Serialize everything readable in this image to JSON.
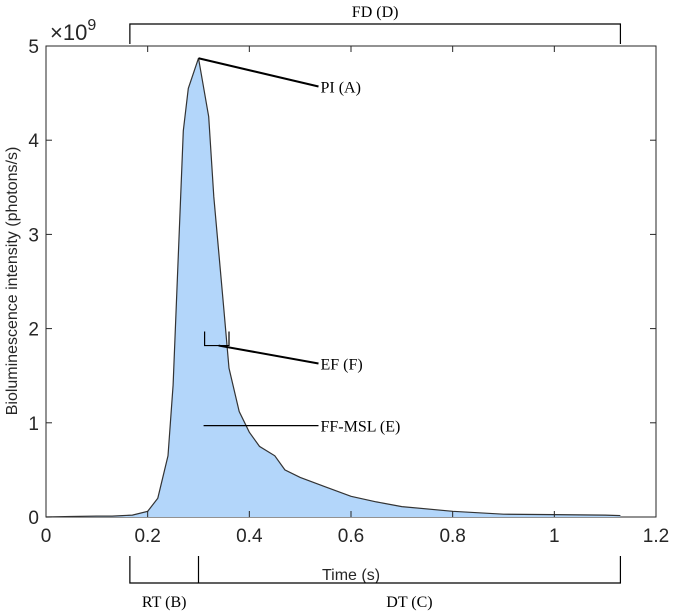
{
  "chart_data": {
    "type": "area",
    "xlabel": "Time (s)",
    "ylabel": "Bioluminescence intensity (photons/s)",
    "xlim": [
      0,
      1.2
    ],
    "ylim": [
      0,
      5
    ],
    "y_multiplier": {
      "base": "×10",
      "exponent": "9"
    },
    "xticks": [
      {
        "value": 0,
        "label": "0"
      },
      {
        "value": 0.2,
        "label": "0.2"
      },
      {
        "value": 0.4,
        "label": "0.4"
      },
      {
        "value": 0.6,
        "label": "0.6"
      },
      {
        "value": 0.8,
        "label": "0.8"
      },
      {
        "value": 1,
        "label": "1"
      },
      {
        "value": 1.2,
        "label": "1.2"
      }
    ],
    "yticks": [
      {
        "value": 0,
        "label": "0"
      },
      {
        "value": 1,
        "label": "1"
      },
      {
        "value": 2,
        "label": "2"
      },
      {
        "value": 3,
        "label": "3"
      },
      {
        "value": 4,
        "label": "4"
      },
      {
        "value": 5,
        "label": "5"
      }
    ],
    "grid": false,
    "fill_color": "#b3d6fa",
    "line_color": "#333333",
    "x": [
      0,
      0.05,
      0.1,
      0.13,
      0.15,
      0.17,
      0.2,
      0.22,
      0.24,
      0.25,
      0.27,
      0.28,
      0.3,
      0.32,
      0.33,
      0.35,
      0.36,
      0.38,
      0.4,
      0.42,
      0.45,
      0.47,
      0.5,
      0.55,
      0.6,
      0.65,
      0.7,
      0.8,
      0.9,
      1.0,
      1.1,
      1.13
    ],
    "y": [
      0,
      0.005,
      0.01,
      0.01,
      0.015,
      0.02,
      0.06,
      0.2,
      0.65,
      1.4,
      4.1,
      4.55,
      4.87,
      4.25,
      3.4,
      2.2,
      1.58,
      1.12,
      0.9,
      0.75,
      0.65,
      0.5,
      0.42,
      0.32,
      0.22,
      0.16,
      0.11,
      0.06,
      0.03,
      0.025,
      0.02,
      0.015
    ],
    "annotations": {
      "fd": {
        "label": "FD (D)",
        "x_start": 0.165,
        "x_end": 1.13
      },
      "rt": {
        "label": "RT (B)",
        "x_start": 0.165,
        "x_end": 0.3
      },
      "dt": {
        "label": "DT (C)",
        "x_start": 0.3,
        "x_end": 1.13
      },
      "pi": {
        "label": "PI (A)",
        "x": 0.3,
        "y": 4.87,
        "text_x": 0.54,
        "text_y": 4.57
      },
      "ef": {
        "label": "EF (F)",
        "x1": 0.312,
        "x2": 0.36,
        "y": 1.82,
        "text_x": 0.54,
        "text_y": 1.63
      },
      "ffmsl": {
        "label": "FF-MSL (E)",
        "x": 0.31,
        "y": 0.97,
        "text_x": 0.54
      }
    }
  }
}
